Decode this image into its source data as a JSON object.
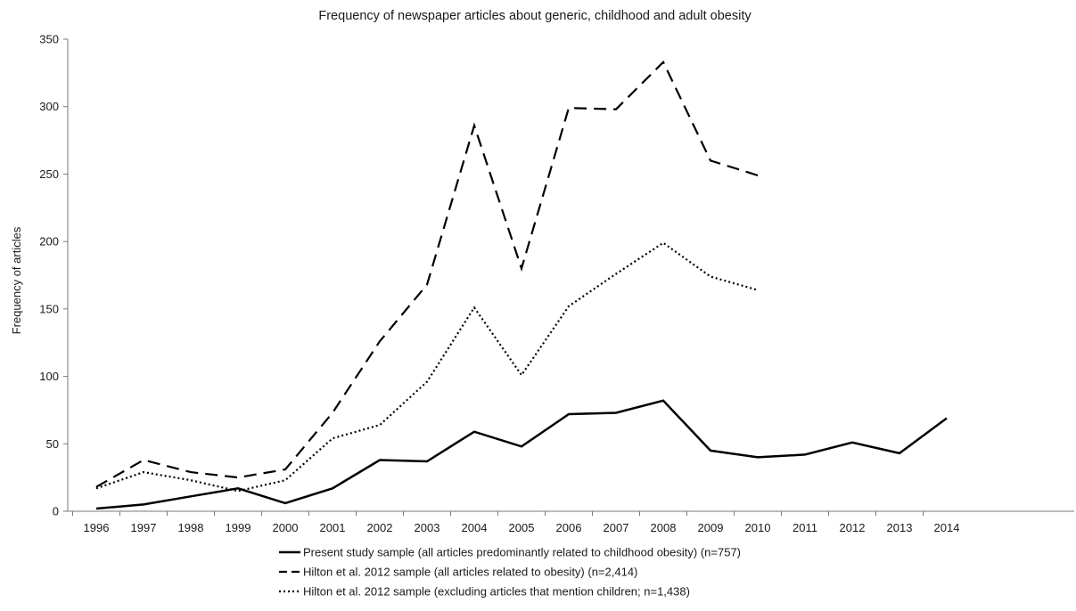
{
  "chart_data": {
    "type": "line",
    "title": "Frequency of newspaper articles about generic, childhood and adult obesity",
    "xlabel": "",
    "ylabel": "Frequency of articles",
    "ylim": [
      0,
      350
    ],
    "yticks": [
      0,
      50,
      100,
      150,
      200,
      250,
      300,
      350
    ],
    "categories": [
      "1996",
      "1997",
      "1998",
      "1999",
      "2000",
      "2001",
      "2002",
      "2003",
      "2004",
      "2005",
      "2006",
      "2007",
      "2008",
      "2009",
      "2010",
      "2011",
      "2012",
      "2013",
      "2014"
    ],
    "grid": false,
    "legend_position": "bottom",
    "series": [
      {
        "name": "Present study sample (all articles predominantly related to childhood obesity) (n=757)",
        "style": "solid",
        "color": "#000000",
        "values": [
          2,
          5,
          11,
          17,
          6,
          17,
          38,
          37,
          59,
          48,
          72,
          73,
          82,
          45,
          40,
          42,
          51,
          43,
          69
        ]
      },
      {
        "name": "Hilton et al. 2012 sample (all articles related to obesity) (n=2,414)",
        "style": "dashed",
        "color": "#000000",
        "values": [
          18,
          38,
          29,
          25,
          31,
          73,
          126,
          168,
          286,
          180,
          299,
          298,
          333,
          260,
          249,
          null,
          null,
          null,
          null
        ]
      },
      {
        "name": "Hilton et al. 2012 sample (excluding articles that mention children; n=1,438)",
        "style": "dotted",
        "color": "#000000",
        "values": [
          17,
          29,
          23,
          15,
          23,
          54,
          64,
          96,
          151,
          101,
          152,
          176,
          199,
          174,
          164,
          null,
          null,
          null,
          null
        ]
      }
    ]
  }
}
